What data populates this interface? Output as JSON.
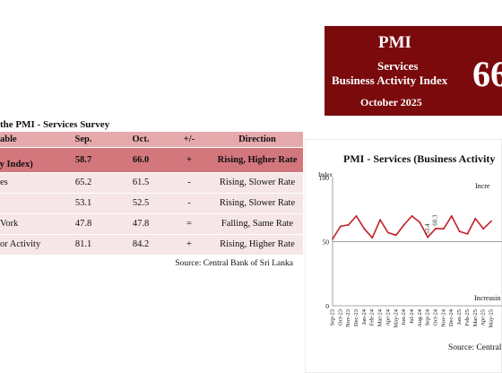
{
  "banner": {
    "title": "PMI",
    "line1": "Services",
    "line2": "Business Activity Index",
    "month": "October 2025",
    "value": "66"
  },
  "table": {
    "title": "the PMI - Services Survey",
    "headers": {
      "variable": "able",
      "sep": "Sep.",
      "oct": "Oct.",
      "change": "+/-",
      "direction": "Direction"
    },
    "rows": [
      {
        "label_line1": "s",
        "label_line2": "vity Index)",
        "sep": "58.7",
        "oct": "66.0",
        "change": "+",
        "direction": "Rising, Higher Rate"
      },
      {
        "label": "es",
        "sep": "65.2",
        "oct": "61.5",
        "change": "-",
        "direction": "Rising, Slower Rate"
      },
      {
        "label": "",
        "sep": "53.1",
        "oct": "52.5",
        "change": "-",
        "direction": "Rising, Slower Rate"
      },
      {
        "label": "Vork",
        "sep": "47.8",
        "oct": "47.8",
        "change": "=",
        "direction": "Falling, Same Rate"
      },
      {
        "label": "or Activity",
        "sep": "81.1",
        "oct": "84.2",
        "change": "+",
        "direction": "Rising, Higher Rate"
      }
    ],
    "source": "Source: Central Bank of Sri Lanka"
  },
  "chart": {
    "source": "Source: Central"
  },
  "chart_data": {
    "type": "line",
    "title": "PMI - Services (Business Activity",
    "ylabel": "Index",
    "xlabel": "",
    "ylim": [
      0,
      100
    ],
    "yticks": [
      0,
      50,
      100
    ],
    "grid": false,
    "x": [
      "Sep-23",
      "Oct-23",
      "Nov-23",
      "Dec-23",
      "Jan-24",
      "Feb-24",
      "Mar-24",
      "Apr-24",
      "May-24",
      "Jun-24",
      "Jul-24",
      "Aug-24",
      "Sep-24",
      "Oct-24",
      "Nov-24",
      "Dec-24",
      "Jan-25",
      "Feb-25",
      "Mar-25",
      "Apr-25",
      "May-25"
    ],
    "series": [
      {
        "values": [
          52,
          62,
          63,
          70,
          60,
          53,
          67,
          57,
          55,
          63,
          70,
          65,
          53.4,
          60.3,
          60,
          70,
          58,
          56,
          68,
          60,
          66
        ]
      }
    ],
    "color": "#c21f26",
    "reference_line": 50,
    "data_labels": [
      {
        "x": "Sep-24",
        "text": "53.4"
      },
      {
        "x": "Oct-24",
        "text": "60.3"
      }
    ],
    "annotations": [
      "Incre",
      "Increasin"
    ]
  }
}
